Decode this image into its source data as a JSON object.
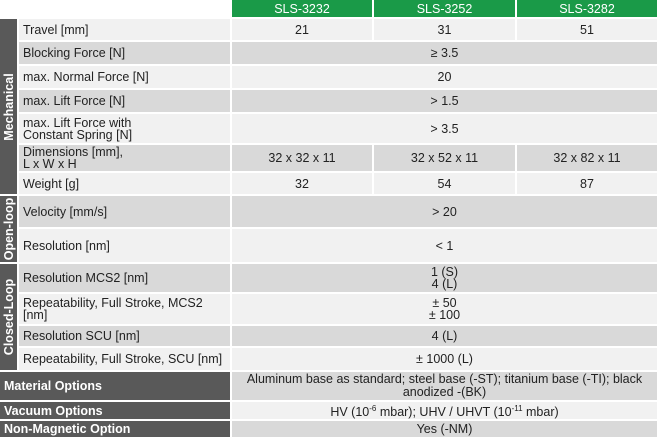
{
  "header": {
    "models": [
      "SLS-3232",
      "SLS-3252",
      "SLS-3282"
    ]
  },
  "groups": {
    "mechanical": "Mechanical",
    "open_loop": "Open-loop",
    "closed_loop": "Closed-Loop"
  },
  "rows": {
    "travel": {
      "label": "Travel [mm]",
      "v1": "21",
      "v2": "31",
      "v3": "51"
    },
    "blocking_force": {
      "label": "Blocking Force [N]",
      "value": "≥ 3.5"
    },
    "normal_force": {
      "label": "max. Normal Force [N]",
      "value": "20"
    },
    "lift_force": {
      "label": "max. Lift Force [N]",
      "value": "> 1.5"
    },
    "lift_force_spring": {
      "label_l1": "max. Lift Force  with",
      "label_l2": "Constant Spring [N]",
      "value": "> 3.5"
    },
    "dimensions": {
      "label_l1": "Dimensions [mm],",
      "label_l2": "L x  W x H",
      "v1": "32 x 32 x 11",
      "v2": "32 x 52 x 11",
      "v3": "32 x 82 x 11"
    },
    "weight": {
      "label": "Weight [g]",
      "v1": "32",
      "v2": "54",
      "v3": "87"
    },
    "velocity": {
      "label": "Velocity [mm/s]",
      "value": "> 20"
    },
    "resolution": {
      "label": "Resolution [nm]",
      "value": "< 1"
    },
    "resolution_mcs2": {
      "label": "Resolution MCS2 [nm]",
      "value_l1": "1 (S)",
      "value_l2": "4 (L)"
    },
    "repeat_mcs2": {
      "label": "Repeatability, Full Stroke, MCS2 [nm]",
      "value_l1": "± 50",
      "value_l2": "± 100"
    },
    "resolution_scu": {
      "label": "Resolution SCU [nm]",
      "value": "4 (L)"
    },
    "repeat_scu": {
      "label": "Repeatability, Full Stroke, SCU [nm]",
      "value": "± 1000 (L)"
    }
  },
  "options": {
    "material": {
      "label": "Material Options",
      "value_l1": "Aluminum base as standard; steel base (-ST); titanium base (-TI); black",
      "value_l2": "anodized -(BK)"
    },
    "vacuum": {
      "label": "Vacuum Options",
      "hv": "HV (10",
      "hv_exp": "-6",
      "mbar_a": " mbar);  UHV / UHVT (10",
      "uhv_exp": "-11",
      "mbar_b": " mbar)"
    },
    "nonmagnetic": {
      "label": "Non-Magnetic Option",
      "value": "Yes (-NM)"
    }
  }
}
